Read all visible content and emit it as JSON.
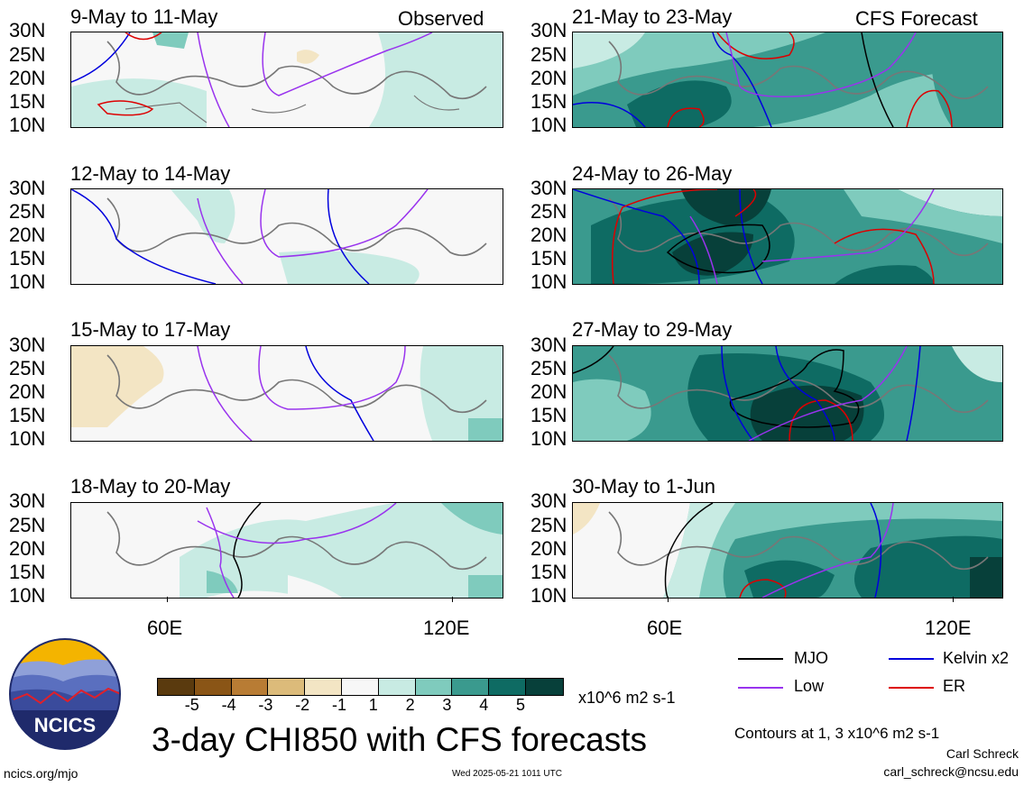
{
  "panels": [
    {
      "title": "9-May to 11-May",
      "tag": "Observed"
    },
    {
      "title": "21-May to 23-May",
      "tag": "CFS Forecast"
    },
    {
      "title": "12-May to 14-May",
      "tag": ""
    },
    {
      "title": "24-May to 26-May",
      "tag": ""
    },
    {
      "title": "15-May to 17-May",
      "tag": ""
    },
    {
      "title": "27-May to 29-May",
      "tag": ""
    },
    {
      "title": "18-May to 20-May",
      "tag": ""
    },
    {
      "title": "30-May to 1-Jun",
      "tag": ""
    }
  ],
  "lat_labels": [
    "30N",
    "25N",
    "20N",
    "15N",
    "10N"
  ],
  "lon_labels": [
    "60E",
    "120E"
  ],
  "legend": {
    "mjo": "MJO",
    "kelvin": "Kelvin x2",
    "low": "Low",
    "er": "ER",
    "colors": {
      "mjo": "#000000",
      "kelvin": "#0000dd",
      "low": "#9933ee",
      "er": "#dd0000"
    }
  },
  "colorbar": {
    "labels": [
      "-5",
      "-4",
      "-3",
      "-2",
      "-1",
      "1",
      "2",
      "3",
      "4",
      "5"
    ],
    "colors": [
      "#5a3a0e",
      "#8a5516",
      "#b87c34",
      "#dcbb7a",
      "#f3e5c4",
      "#f7f7f7",
      "#c8ebe3",
      "#7fcbbd",
      "#3a9a8e",
      "#0e6b63",
      "#07403a"
    ],
    "unit": "x10^6 m2 s-1"
  },
  "main_title": "3-day CHI850 with CFS forecasts",
  "contours_note": "Contours at 1, 3 x10^6 m2 s-1",
  "author": "Carl Schreck",
  "email": "carl_schreck@ncsu.edu",
  "site": "ncics.org/mjo",
  "timestamp": "Wed 2025-05-21 1011 UTC",
  "logo_text": "NCICS"
}
